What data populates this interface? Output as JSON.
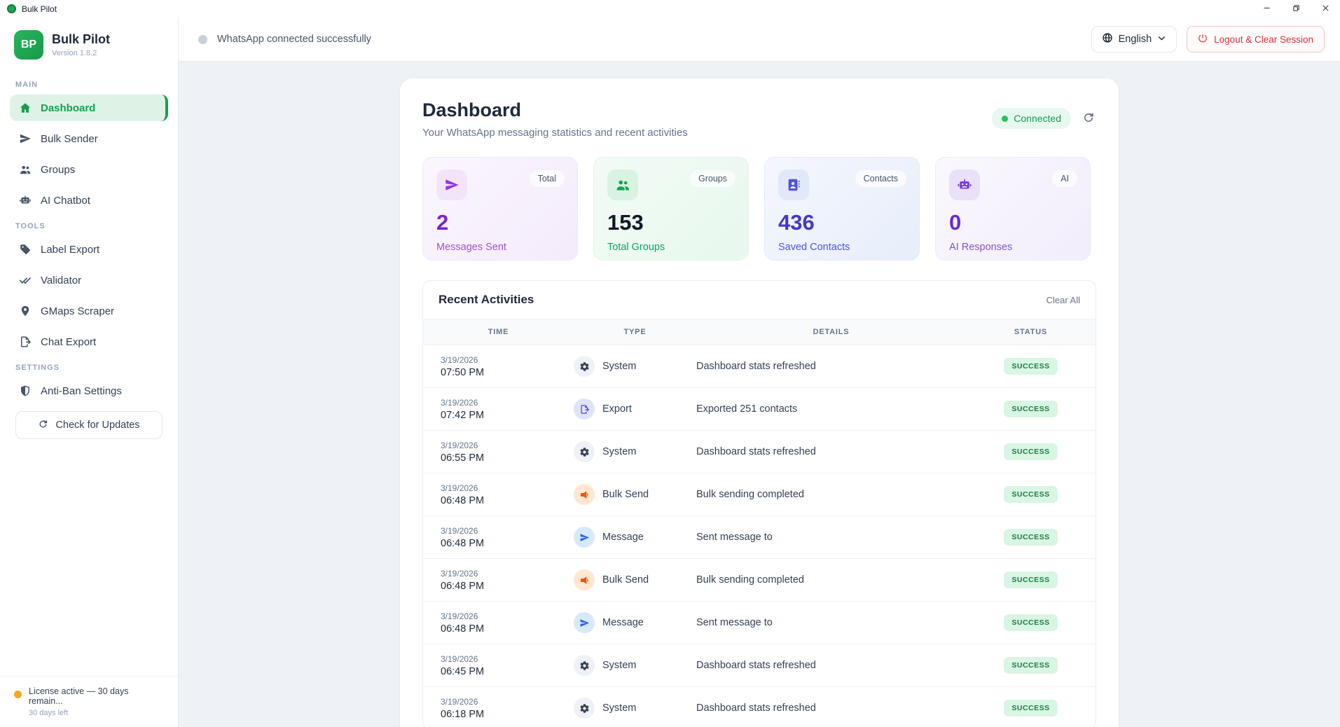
{
  "titlebar": {
    "title": "Bulk Pilot"
  },
  "sidebar": {
    "logo_initials": "BP",
    "app_name": "Bulk Pilot",
    "version": "Version 1.8.2",
    "sections": [
      {
        "label": "MAIN",
        "items": [
          {
            "label": "Dashboard",
            "icon": "home-icon",
            "active": true
          },
          {
            "label": "Bulk Sender",
            "icon": "paper-plane-icon",
            "active": false
          },
          {
            "label": "Groups",
            "icon": "users-icon",
            "active": false
          },
          {
            "label": "AI Chatbot",
            "icon": "robot-icon",
            "active": false
          }
        ]
      },
      {
        "label": "TOOLS",
        "items": [
          {
            "label": "Label Export",
            "icon": "tag-icon",
            "active": false
          },
          {
            "label": "Validator",
            "icon": "double-check-icon",
            "active": false
          },
          {
            "label": "GMaps Scraper",
            "icon": "map-pin-icon",
            "active": false
          },
          {
            "label": "Chat Export",
            "icon": "doc-export-icon",
            "active": false
          }
        ]
      },
      {
        "label": "SETTINGS",
        "items": [
          {
            "label": "Anti-Ban Settings",
            "icon": "shield-icon",
            "active": false
          }
        ]
      }
    ],
    "update_button": "Check for Updates",
    "license": {
      "title": "License active — 30 days remain...",
      "subtitle": "30 days left"
    }
  },
  "topbar": {
    "status_text": "WhatsApp connected successfully",
    "language": "English",
    "logout_label": "Logout & Clear Session"
  },
  "dashboard": {
    "title": "Dashboard",
    "subtitle": "Your WhatsApp messaging statistics and recent activities",
    "connection_status": "Connected",
    "stats": [
      {
        "badge": "Total",
        "value": "2",
        "label": "Messages Sent",
        "icon": "paper-plane-icon",
        "theme": "purple"
      },
      {
        "badge": "Groups",
        "value": "153",
        "label": "Total Groups",
        "icon": "users-icon",
        "theme": "green"
      },
      {
        "badge": "Contacts",
        "value": "436",
        "label": "Saved Contacts",
        "icon": "contact-card-icon",
        "theme": "blue"
      },
      {
        "badge": "AI",
        "value": "0",
        "label": "AI Responses",
        "icon": "robot-icon",
        "theme": "violet"
      }
    ],
    "activities": {
      "title": "Recent Activities",
      "clear_all_label": "Clear All",
      "columns": [
        "TIME",
        "TYPE",
        "DETAILS",
        "STATUS"
      ],
      "rows": [
        {
          "date": "3/19/2026",
          "time": "07:50 PM",
          "type": "System",
          "type_icon": "gear-icon",
          "type_theme": "system",
          "details": "Dashboard stats refreshed",
          "status": "SUCCESS"
        },
        {
          "date": "3/19/2026",
          "time": "07:42 PM",
          "type": "Export",
          "type_icon": "doc-export-icon",
          "type_theme": "export",
          "details": "Exported 251 contacts",
          "status": "SUCCESS"
        },
        {
          "date": "3/19/2026",
          "time": "06:55 PM",
          "type": "System",
          "type_icon": "gear-icon",
          "type_theme": "system",
          "details": "Dashboard stats refreshed",
          "status": "SUCCESS"
        },
        {
          "date": "3/19/2026",
          "time": "06:48 PM",
          "type": "Bulk Send",
          "type_icon": "megaphone-icon",
          "type_theme": "bulksend",
          "details": "Bulk sending completed",
          "status": "SUCCESS"
        },
        {
          "date": "3/19/2026",
          "time": "06:48 PM",
          "type": "Message",
          "type_icon": "paper-plane-icon",
          "type_theme": "message",
          "details": "Sent message to",
          "status": "SUCCESS"
        },
        {
          "date": "3/19/2026",
          "time": "06:48 PM",
          "type": "Bulk Send",
          "type_icon": "megaphone-icon",
          "type_theme": "bulksend",
          "details": "Bulk sending completed",
          "status": "SUCCESS"
        },
        {
          "date": "3/19/2026",
          "time": "06:48 PM",
          "type": "Message",
          "type_icon": "paper-plane-icon",
          "type_theme": "message",
          "details": "Sent message to",
          "status": "SUCCESS"
        },
        {
          "date": "3/19/2026",
          "time": "06:45 PM",
          "type": "System",
          "type_icon": "gear-icon",
          "type_theme": "system",
          "details": "Dashboard stats refreshed",
          "status": "SUCCESS"
        },
        {
          "date": "3/19/2026",
          "time": "06:18 PM",
          "type": "System",
          "type_icon": "gear-icon",
          "type_theme": "system",
          "details": "Dashboard stats refreshed",
          "status": "SUCCESS"
        }
      ]
    }
  }
}
